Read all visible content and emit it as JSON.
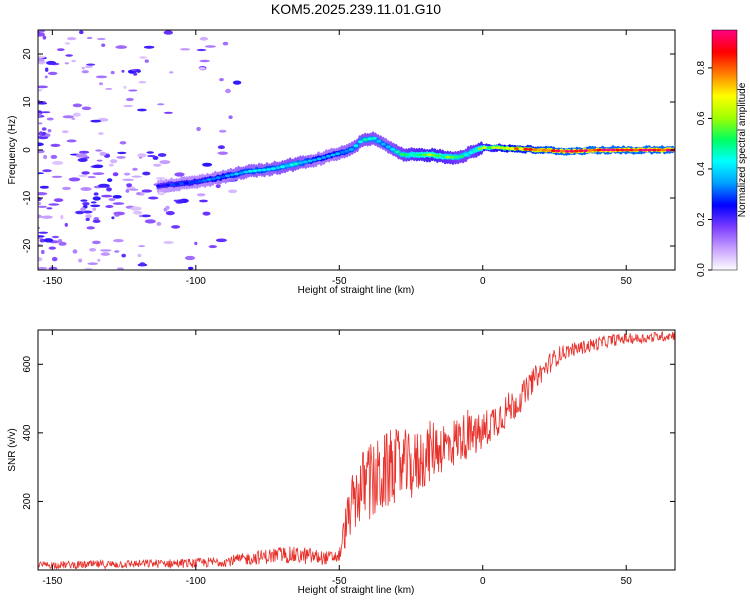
{
  "figure_title": "KOM5.2025.239.11.01.G10",
  "chart_data": [
    {
      "type": "heatmap",
      "title": "KOM5.2025.239.11.01.G10",
      "xlabel": "Height of straight line (km)",
      "ylabel": "Frequency (Hz)",
      "xlim": [
        -155,
        67
      ],
      "ylim": [
        -25,
        25
      ],
      "xticks": [
        -150,
        -100,
        -50,
        0,
        50
      ],
      "yticks": [
        -20,
        -10,
        0,
        10,
        20
      ],
      "colorbar": {
        "label": "Normalized spectral amplitude",
        "range": [
          0,
          0.95
        ],
        "ticks": [
          0.0,
          0.2,
          0.4,
          0.6,
          0.8
        ],
        "colormap": [
          "#ffffff",
          "#c8a0ff",
          "#7a3cff",
          "#0000ff",
          "#00a0ff",
          "#00ffff",
          "#00ff60",
          "#a0ff00",
          "#ffff00",
          "#ff8000",
          "#ff0000",
          "#ff0080"
        ]
      },
      "ridge": {
        "x_km": [
          -113,
          -105,
          -98,
          -90,
          -82,
          -74,
          -66,
          -58,
          -52,
          -46,
          -42,
          -38,
          -34,
          -28,
          -24,
          -18,
          -12,
          -8,
          -4,
          0,
          5,
          10,
          20,
          30,
          40,
          50,
          60,
          67
        ],
        "freq_hz": [
          -7.5,
          -7,
          -6.5,
          -5.5,
          -4.5,
          -4,
          -3,
          -2,
          -1,
          0,
          2,
          2.5,
          1,
          -1,
          -1,
          -1,
          -1.5,
          -1.5,
          -0.5,
          0.5,
          0.5,
          0.3,
          0,
          -0.3,
          0,
          0,
          0,
          0
        ],
        "amplitude": [
          0.25,
          0.3,
          0.3,
          0.35,
          0.4,
          0.4,
          0.45,
          0.35,
          0.35,
          0.4,
          0.45,
          0.45,
          0.4,
          0.5,
          0.55,
          0.6,
          0.55,
          0.5,
          0.5,
          0.6,
          0.65,
          0.75,
          0.85,
          0.9,
          0.9,
          0.9,
          0.9,
          0.9
        ]
      }
    },
    {
      "type": "line",
      "xlabel": "Height of straight line (km)",
      "ylabel": "SNR (v/v)",
      "xlim": [
        -155,
        67
      ],
      "ylim": [
        0,
        700
      ],
      "xticks": [
        -150,
        -100,
        -50,
        0,
        50
      ],
      "yticks": [
        200,
        400,
        600
      ],
      "series": [
        {
          "name": "SNR",
          "color": "#e8302a",
          "x": [
            -155,
            -140,
            -120,
            -100,
            -90,
            -80,
            -70,
            -60,
            -55,
            -50,
            -48,
            -46,
            -44,
            -42,
            -40,
            -38,
            -36,
            -34,
            -32,
            -30,
            -28,
            -26,
            -24,
            -22,
            -20,
            -18,
            -15,
            -12,
            -9,
            -6,
            -3,
            0,
            3,
            6,
            9,
            12,
            15,
            18,
            21,
            24,
            27,
            30,
            35,
            40,
            45,
            50,
            55,
            60,
            67
          ],
          "y": [
            15,
            15,
            18,
            20,
            25,
            35,
            45,
            40,
            35,
            40,
            120,
            180,
            220,
            240,
            260,
            250,
            270,
            280,
            300,
            300,
            310,
            300,
            300,
            320,
            330,
            350,
            360,
            360,
            380,
            390,
            390,
            400,
            430,
            450,
            470,
            490,
            520,
            560,
            580,
            610,
            630,
            640,
            650,
            660,
            670,
            675,
            675,
            680,
            685
          ],
          "noise_amplitude": [
            10,
            12,
            12,
            14,
            15,
            20,
            25,
            25,
            20,
            20,
            60,
            80,
            100,
            110,
            120,
            120,
            120,
            120,
            110,
            110,
            110,
            100,
            100,
            100,
            90,
            90,
            80,
            80,
            70,
            70,
            60,
            60,
            55,
            55,
            50,
            45,
            40,
            35,
            30,
            30,
            25,
            20,
            20,
            20,
            18,
            16,
            15,
            15,
            15
          ]
        }
      ]
    }
  ]
}
